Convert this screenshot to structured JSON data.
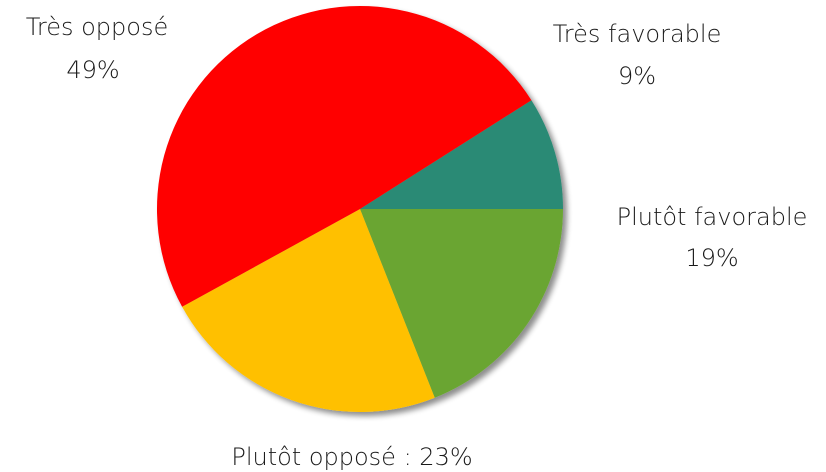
{
  "chart_data": {
    "type": "pie",
    "title": "",
    "slices": [
      {
        "label": "Très favorable",
        "value": 9,
        "display": "9%",
        "color": "#2a8a74"
      },
      {
        "label": "Plutôt favorable",
        "value": 19,
        "display": "19%",
        "color": "#6aa531"
      },
      {
        "label": "Plutôt opposé",
        "value": 23,
        "display": "Plutôt opposé  : 23%",
        "color": "#ffc000"
      },
      {
        "label": "Très opposé",
        "value": 49,
        "display": "49%",
        "color": "#ff0000"
      }
    ],
    "start_angle_deg": -32.4,
    "direction": "clockwise",
    "legend": "none",
    "data_labels": "outside"
  }
}
